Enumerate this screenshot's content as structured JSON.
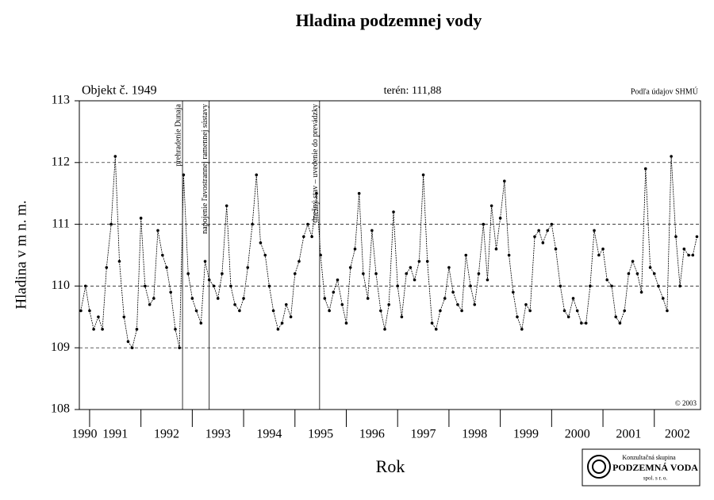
{
  "chart_data": {
    "type": "line",
    "title": "Hladina podzemnej vody",
    "object_label": "Objekt č. 1949",
    "terrain_label": "terén: 111,88",
    "source_label": "Podľa údajov SHMÚ",
    "copyright": "© 2003",
    "ylabel": "Hladina v m n. m.",
    "xlabel": "Rok",
    "logo": {
      "line1": "Konzultačná skupina",
      "line2": "PODZEMNÁ VODA",
      "line3": "spol. s r. o."
    },
    "xlim": [
      1990.8,
      2002.9
    ],
    "xticks": [
      1990,
      1991,
      1992,
      1993,
      1994,
      1995,
      1996,
      1997,
      1998,
      1999,
      2000,
      2001,
      2002
    ],
    "ylim": [
      108,
      113
    ],
    "yticks": [
      108,
      109,
      110,
      111,
      112,
      113
    ],
    "grid": true,
    "color": "#000000",
    "annotations": [
      {
        "x": 1992.81,
        "text": "prehradenie Dunaja"
      },
      {
        "x": 1993.33,
        "text": "napojenie ľavostrannej ramennej sústavy"
      },
      {
        "x": 1995.48,
        "text": "dnešný stav – uvedenie do prevádzky"
      }
    ],
    "x": [
      1990.83,
      1990.92,
      1991.0,
      1991.08,
      1991.17,
      1991.25,
      1991.33,
      1991.42,
      1991.5,
      1991.58,
      1991.67,
      1991.75,
      1991.83,
      1991.92,
      1992.0,
      1992.08,
      1992.17,
      1992.25,
      1992.33,
      1992.42,
      1992.5,
      1992.58,
      1992.67,
      1992.75,
      1992.83,
      1992.92,
      1993.0,
      1993.08,
      1993.17,
      1993.25,
      1993.33,
      1993.42,
      1993.5,
      1993.58,
      1993.67,
      1993.75,
      1993.83,
      1993.92,
      1994.0,
      1994.08,
      1994.17,
      1994.25,
      1994.33,
      1994.42,
      1994.5,
      1994.58,
      1994.67,
      1994.75,
      1994.83,
      1994.92,
      1995.0,
      1995.08,
      1995.17,
      1995.25,
      1995.33,
      1995.42,
      1995.5,
      1995.58,
      1995.67,
      1995.75,
      1995.83,
      1995.92,
      1996.0,
      1996.08,
      1996.17,
      1996.25,
      1996.33,
      1996.42,
      1996.5,
      1996.58,
      1996.67,
      1996.75,
      1996.83,
      1996.92,
      1997.0,
      1997.08,
      1997.17,
      1997.25,
      1997.33,
      1997.42,
      1997.5,
      1997.58,
      1997.67,
      1997.75,
      1997.83,
      1997.92,
      1998.0,
      1998.08,
      1998.17,
      1998.25,
      1998.33,
      1998.42,
      1998.5,
      1998.58,
      1998.67,
      1998.75,
      1998.83,
      1998.92,
      1999.0,
      1999.08,
      1999.17,
      1999.25,
      1999.33,
      1999.42,
      1999.5,
      1999.58,
      1999.67,
      1999.75,
      1999.83,
      1999.92,
      2000.0,
      2000.08,
      2000.17,
      2000.25,
      2000.33,
      2000.42,
      2000.5,
      2000.58,
      2000.67,
      2000.75,
      2000.83,
      2000.92,
      2001.0,
      2001.08,
      2001.17,
      2001.25,
      2001.33,
      2001.42,
      2001.5,
      2001.58,
      2001.67,
      2001.75,
      2001.83,
      2001.92,
      2002.0,
      2002.08,
      2002.17,
      2002.25,
      2002.33,
      2002.42,
      2002.5,
      2002.58,
      2002.67,
      2002.75,
      2002.83
    ],
    "values": [
      109.6,
      110.0,
      109.6,
      109.3,
      109.5,
      109.3,
      110.3,
      111.0,
      112.1,
      110.4,
      109.5,
      109.1,
      109.0,
      109.3,
      111.1,
      110.0,
      109.7,
      109.8,
      110.9,
      110.5,
      110.3,
      109.9,
      109.3,
      109.0,
      111.8,
      110.2,
      109.8,
      109.6,
      109.4,
      110.4,
      110.1,
      110.0,
      109.8,
      110.2,
      111.3,
      110.0,
      109.7,
      109.6,
      109.8,
      110.3,
      111.0,
      111.8,
      110.7,
      110.5,
      110.0,
      109.6,
      109.3,
      109.4,
      109.7,
      109.5,
      110.2,
      110.4,
      110.8,
      111.0,
      110.8,
      111.5,
      110.5,
      109.8,
      109.6,
      109.9,
      110.1,
      109.7,
      109.4,
      110.3,
      110.6,
      111.5,
      110.2,
      109.8,
      110.9,
      110.2,
      109.6,
      109.3,
      109.7,
      111.2,
      110.0,
      109.5,
      110.2,
      110.3,
      110.1,
      110.4,
      111.8,
      110.4,
      109.4,
      109.3,
      109.6,
      109.8,
      110.3,
      109.9,
      109.7,
      109.6,
      110.5,
      110.0,
      109.7,
      110.2,
      111.0,
      110.1,
      111.3,
      110.6,
      111.1,
      111.7,
      110.5,
      109.9,
      109.5,
      109.3,
      109.7,
      109.6,
      110.8,
      110.9,
      110.7,
      110.9,
      111.0,
      110.6,
      110.0,
      109.6,
      109.5,
      109.8,
      109.6,
      109.4,
      109.4,
      110.0,
      110.9,
      110.5,
      110.6,
      110.1,
      110.0,
      109.5,
      109.4,
      109.6,
      110.2,
      110.4,
      110.2,
      109.9,
      111.9,
      110.3,
      110.2,
      110.0,
      109.8,
      109.6,
      112.1,
      110.8,
      110.0,
      110.6,
      110.5,
      110.5,
      110.8
    ]
  }
}
